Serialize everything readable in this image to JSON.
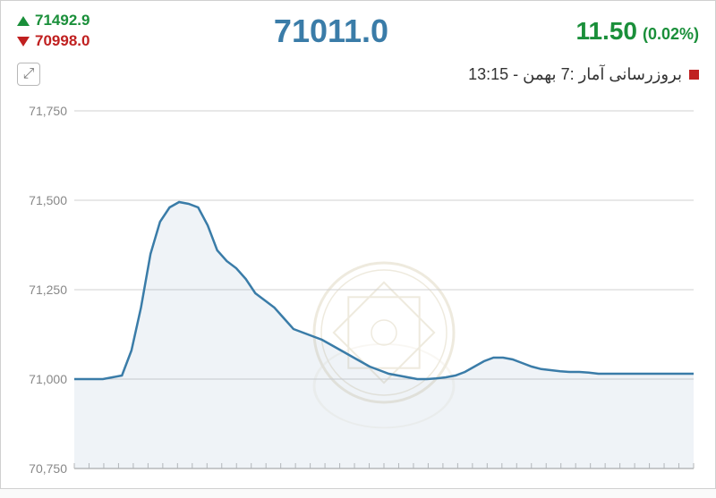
{
  "header": {
    "high_value": "71492.9",
    "low_value": "70998.0",
    "main_value": "71011.0",
    "change_abs": "11.50",
    "change_pct": "(0.02%)",
    "high_color": "#1a8f3a",
    "low_color": "#c02020",
    "main_color": "#3a7ca8",
    "change_color": "#1a8f3a"
  },
  "update": {
    "text": "بروزرسانی آمار :7 بهمن - 13:15"
  },
  "chart": {
    "type": "line",
    "ylim": [
      70750,
      71750
    ],
    "yticks": [
      70750,
      71000,
      71250,
      71500,
      71750
    ],
    "ytick_labels": [
      "70,750",
      "71,000",
      "71,250",
      "71,500",
      "71,750"
    ],
    "ytick_step": 250,
    "y_values": [
      71000,
      71000,
      71000,
      71000,
      71005,
      71010,
      71080,
      71200,
      71350,
      71440,
      71480,
      71495,
      71490,
      71480,
      71430,
      71360,
      71330,
      71310,
      71280,
      71240,
      71220,
      71200,
      71170,
      71140,
      71130,
      71120,
      71110,
      71095,
      71080,
      71065,
      71050,
      71035,
      71025,
      71015,
      71010,
      71005,
      71000,
      71000,
      71002,
      71005,
      71010,
      71020,
      71035,
      71050,
      71060,
      71060,
      71055,
      71045,
      71035,
      71028,
      71025,
      71022,
      71020,
      71020,
      71018,
      71015,
      71015,
      71015,
      71015,
      71015,
      71015,
      71015,
      71015,
      71015,
      71015,
      71015
    ],
    "line_color": "#3a7ca8",
    "line_width": 2.5,
    "fill_color": "rgba(120,160,190,0.12)",
    "grid_color": "#d0d0d0",
    "baseline_color": "#bababa",
    "background_color": "#ffffff",
    "label_color": "#888888",
    "label_fontsize": 14,
    "x_tick_count": 42
  }
}
